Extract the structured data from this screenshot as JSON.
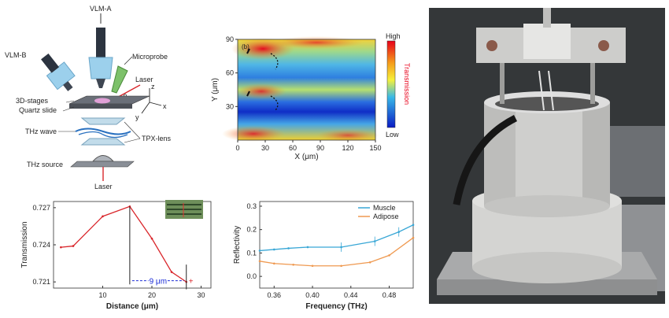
{
  "schematic": {
    "labels": {
      "vlm_a": "VLM-A",
      "vlm_b": "VLM-B",
      "microprobe": "Microprobe",
      "laser_top": "Laser",
      "theta": "θ",
      "z_axis": "z",
      "x_axis": "x",
      "y_axis": "y",
      "stages": "3D-stages",
      "quartz": "Quartz slide",
      "thz_wave": "THz wave",
      "tpx_lens": "TPX-lens",
      "thz_source": "THz source",
      "laser_bottom": "Laser"
    }
  },
  "heatmap": {
    "panel_letter": "(b)",
    "colorbar_high": "High",
    "colorbar_low": "Low",
    "colorbar_title": "Transmission",
    "colors": {
      "high": "#e8001a",
      "mid": "#f6f03a",
      "low": "#0a1cc4"
    }
  },
  "photo": {
    "description_colors": {
      "background": "#3a3d3f",
      "metal": "#c9c9c7"
    }
  },
  "chart_data": [
    {
      "type": "heatmap",
      "xlabel": "X (μm)",
      "ylabel": "Y (μm)",
      "xlim": [
        0,
        150
      ],
      "ylim": [
        0,
        90
      ],
      "xticks": [
        "0",
        "30",
        "60",
        "90",
        "120",
        "150"
      ],
      "yticks": [
        "30",
        "60",
        "90"
      ],
      "colorbar": [
        "High",
        "Transmission",
        "Low"
      ]
    },
    {
      "type": "line",
      "xlabel": "Distance (μm)",
      "ylabel": "Transmission",
      "xlim": [
        0,
        32
      ],
      "ylim": [
        0.7205,
        0.7275
      ],
      "xticks": [
        "10",
        "20",
        "30"
      ],
      "yticks": [
        "0.727",
        "0.724",
        "0.721"
      ],
      "series": [
        {
          "color": "#d9262b",
          "x": [
            1.5,
            4,
            10,
            15.5,
            20,
            24,
            27
          ],
          "y": [
            0.7238,
            0.7239,
            0.7263,
            0.7271,
            0.7245,
            0.7218,
            0.721
          ]
        }
      ],
      "annotation": "9 μm",
      "annotation_color": "#1a2bd6"
    },
    {
      "type": "line",
      "xlabel": "Frequency (THz)",
      "ylabel": "Reflectivity",
      "xlim": [
        0.345,
        0.505
      ],
      "ylim": [
        -0.05,
        0.32
      ],
      "xticks": [
        "0.36",
        "0.40",
        "0.44",
        "0.48"
      ],
      "yticks": [
        "0.0",
        "0.1",
        "0.2",
        "0.3"
      ],
      "series": [
        {
          "name": "Muscle",
          "color": "#39a7d6",
          "x": [
            0.345,
            0.36,
            0.375,
            0.395,
            0.43,
            0.465,
            0.49,
            0.505
          ],
          "y": [
            0.11,
            0.115,
            0.12,
            0.125,
            0.125,
            0.15,
            0.19,
            0.22
          ]
        },
        {
          "name": "Adipose",
          "color": "#ef9950",
          "x": [
            0.345,
            0.36,
            0.38,
            0.4,
            0.43,
            0.46,
            0.48,
            0.505
          ],
          "y": [
            0.065,
            0.055,
            0.05,
            0.045,
            0.045,
            0.06,
            0.09,
            0.165
          ]
        }
      ]
    }
  ]
}
